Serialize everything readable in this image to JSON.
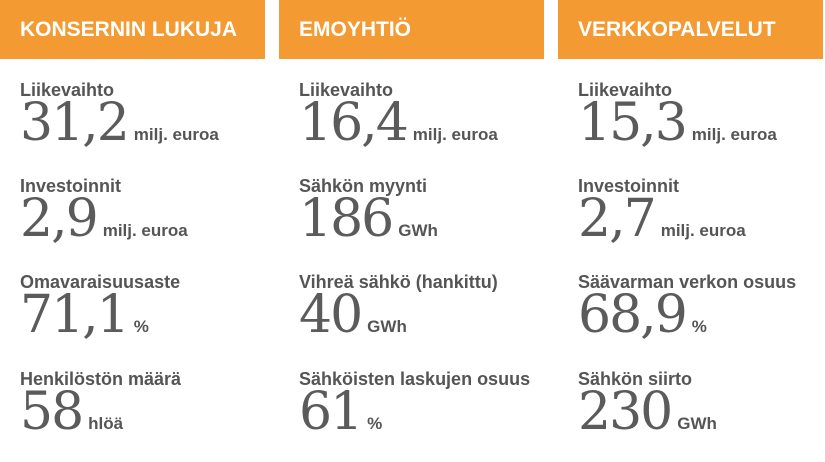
{
  "columns": [
    {
      "header": "KONSERNIN LUKUJA",
      "metrics": [
        {
          "label": "Liikevaihto",
          "value": "31,2",
          "unit": "milj. euroa"
        },
        {
          "label": "Investoinnit",
          "value": "2,9",
          "unit": "milj. euroa"
        },
        {
          "label": "Omavaraisuusaste",
          "value": "71,1",
          "unit": "%"
        },
        {
          "label": "Henkilöstön määrä",
          "value": "58",
          "unit": "hlöä"
        }
      ]
    },
    {
      "header": "EMOYHTIÖ",
      "metrics": [
        {
          "label": "Liikevaihto",
          "value": "16,4",
          "unit": "milj. euroa"
        },
        {
          "label": "Sähkön myynti",
          "value": "186",
          "unit": "GWh"
        },
        {
          "label": "Vihreä sähkö (hankittu)",
          "value": "40",
          "unit": "GWh"
        },
        {
          "label": "Sähköisten laskujen osuus",
          "value": "61",
          "unit": "%"
        }
      ]
    },
    {
      "header": "VERKKOPALVELUT",
      "metrics": [
        {
          "label": "Liikevaihto",
          "value": "15,3",
          "unit": "milj. euroa"
        },
        {
          "label": "Investoinnit",
          "value": "2,7",
          "unit": "milj. euroa"
        },
        {
          "label": "Säävarman verkon osuus",
          "value": "68,9",
          "unit": "%"
        },
        {
          "label": "Sähkön siirto",
          "value": "230",
          "unit": "GWh"
        }
      ]
    }
  ],
  "colors": {
    "header_bg": "#f39a32",
    "header_text": "#ffffff",
    "text": "#555555"
  }
}
